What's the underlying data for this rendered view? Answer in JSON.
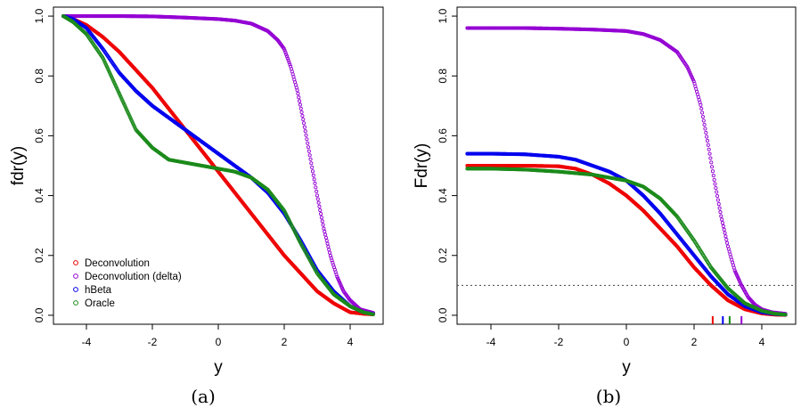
{
  "chart_data": [
    {
      "type": "scatter",
      "caption": "(a)",
      "xlabel": "y",
      "ylabel": "fdr(y)",
      "xlim": [
        -5,
        5
      ],
      "ylim": [
        0,
        1.0
      ],
      "xticks": [
        -4,
        -2,
        0,
        2,
        4
      ],
      "yticks": [
        0.0,
        0.2,
        0.4,
        0.6,
        0.8,
        1.0
      ],
      "xtick_labels": [
        "-4",
        "-2",
        "0",
        "2",
        "4"
      ],
      "ytick_labels": [
        "0.0",
        "0.2",
        "0.4",
        "0.6",
        "0.8",
        "1.0"
      ],
      "grid": false,
      "legend": "bottom-left",
      "series": [
        {
          "name": "Deconvolution",
          "color": "#ee0000",
          "x": [
            -4.7,
            -4.4,
            -4.0,
            -3.5,
            -3.0,
            -2.5,
            -2.0,
            -1.5,
            -1.0,
            -0.5,
            0.0,
            0.5,
            1.0,
            1.5,
            2.0,
            2.5,
            3.0,
            3.5,
            4.0,
            4.4,
            4.7
          ],
          "y": [
            1.0,
            0.99,
            0.97,
            0.93,
            0.88,
            0.82,
            0.76,
            0.69,
            0.62,
            0.55,
            0.48,
            0.41,
            0.34,
            0.27,
            0.2,
            0.14,
            0.08,
            0.04,
            0.01,
            0.005,
            0.003
          ]
        },
        {
          "name": "Deconvolution (delta)",
          "color": "#9400d3",
          "x": [
            -4.7,
            -4.0,
            -3.0,
            -2.0,
            -1.0,
            0.0,
            0.5,
            1.0,
            1.5,
            1.8,
            2.0,
            2.2,
            2.4,
            2.6,
            2.8,
            3.0,
            3.2,
            3.4,
            3.6,
            3.8,
            4.0,
            4.3,
            4.7
          ],
          "y": [
            1.0,
            1.0,
            1.0,
            0.999,
            0.995,
            0.99,
            0.985,
            0.975,
            0.95,
            0.92,
            0.89,
            0.83,
            0.75,
            0.64,
            0.52,
            0.4,
            0.29,
            0.2,
            0.13,
            0.08,
            0.05,
            0.02,
            0.008
          ]
        },
        {
          "name": "hBeta",
          "color": "#0000ee",
          "x": [
            -4.7,
            -4.4,
            -4.0,
            -3.5,
            -3.0,
            -2.5,
            -2.0,
            -1.5,
            -1.0,
            -0.5,
            0.0,
            0.5,
            1.0,
            1.5,
            2.0,
            2.5,
            3.0,
            3.5,
            4.0,
            4.4,
            4.7
          ],
          "y": [
            1.0,
            0.99,
            0.96,
            0.89,
            0.81,
            0.75,
            0.7,
            0.66,
            0.62,
            0.58,
            0.54,
            0.5,
            0.46,
            0.41,
            0.34,
            0.25,
            0.15,
            0.08,
            0.03,
            0.01,
            0.004
          ]
        },
        {
          "name": "Oracle",
          "color": "#1a8a1a",
          "x": [
            -4.7,
            -4.4,
            -4.0,
            -3.5,
            -3.0,
            -2.5,
            -2.0,
            -1.5,
            -1.0,
            -0.5,
            0.0,
            0.5,
            1.0,
            1.5,
            2.0,
            2.5,
            3.0,
            3.5,
            4.0,
            4.4,
            4.7
          ],
          "y": [
            1.0,
            0.98,
            0.94,
            0.86,
            0.74,
            0.62,
            0.56,
            0.52,
            0.51,
            0.5,
            0.49,
            0.48,
            0.46,
            0.42,
            0.35,
            0.24,
            0.14,
            0.07,
            0.03,
            0.01,
            0.003
          ]
        }
      ]
    },
    {
      "type": "scatter",
      "caption": "(b)",
      "xlabel": "y",
      "ylabel": "Fdr(y)",
      "xlim": [
        -5,
        5
      ],
      "ylim": [
        0,
        1.0
      ],
      "xticks": [
        -4,
        -2,
        0,
        2,
        4
      ],
      "yticks": [
        0.0,
        0.2,
        0.4,
        0.6,
        0.8,
        1.0
      ],
      "xtick_labels": [
        "-4",
        "-2",
        "0",
        "2",
        "4"
      ],
      "ytick_labels": [
        "0.0",
        "0.2",
        "0.4",
        "0.6",
        "0.8",
        "1.0"
      ],
      "grid": false,
      "reference_line": {
        "y": 0.1,
        "style": "dotted"
      },
      "rug_marks": [
        {
          "x": 2.55,
          "color": "#ee0000"
        },
        {
          "x": 2.85,
          "color": "#0000ee"
        },
        {
          "x": 3.05,
          "color": "#1a8a1a"
        },
        {
          "x": 3.4,
          "color": "#9400d3"
        }
      ],
      "series": [
        {
          "name": "Deconvolution",
          "color": "#ee0000",
          "x": [
            -4.7,
            -4.0,
            -3.0,
            -2.0,
            -1.5,
            -1.0,
            -0.5,
            0.0,
            0.5,
            1.0,
            1.5,
            2.0,
            2.5,
            3.0,
            3.5,
            4.0,
            4.4,
            4.7
          ],
          "y": [
            0.5,
            0.5,
            0.5,
            0.498,
            0.49,
            0.47,
            0.44,
            0.4,
            0.35,
            0.29,
            0.23,
            0.16,
            0.1,
            0.05,
            0.02,
            0.006,
            0.002,
            0.001
          ]
        },
        {
          "name": "Deconvolution (delta)",
          "color": "#9400d3",
          "x": [
            -4.7,
            -4.0,
            -3.0,
            -2.0,
            -1.0,
            0.0,
            0.5,
            1.0,
            1.5,
            1.8,
            2.0,
            2.2,
            2.4,
            2.6,
            2.8,
            3.0,
            3.2,
            3.4,
            3.6,
            3.8,
            4.0,
            4.3,
            4.7
          ],
          "y": [
            0.96,
            0.96,
            0.96,
            0.958,
            0.955,
            0.95,
            0.94,
            0.92,
            0.88,
            0.83,
            0.78,
            0.7,
            0.58,
            0.45,
            0.33,
            0.23,
            0.15,
            0.1,
            0.06,
            0.035,
            0.02,
            0.01,
            0.005
          ]
        },
        {
          "name": "hBeta",
          "color": "#0000ee",
          "x": [
            -4.7,
            -4.0,
            -3.0,
            -2.0,
            -1.5,
            -1.0,
            -0.5,
            0.0,
            0.5,
            1.0,
            1.5,
            2.0,
            2.5,
            3.0,
            3.5,
            4.0,
            4.4,
            4.7
          ],
          "y": [
            0.54,
            0.54,
            0.538,
            0.53,
            0.52,
            0.5,
            0.48,
            0.45,
            0.4,
            0.34,
            0.27,
            0.2,
            0.13,
            0.07,
            0.03,
            0.01,
            0.004,
            0.002
          ]
        },
        {
          "name": "Oracle",
          "color": "#1a8a1a",
          "x": [
            -4.7,
            -4.0,
            -3.0,
            -2.0,
            -1.5,
            -1.0,
            -0.5,
            0.0,
            0.5,
            1.0,
            1.5,
            2.0,
            2.5,
            3.0,
            3.5,
            4.0,
            4.4,
            4.7
          ],
          "y": [
            0.49,
            0.49,
            0.487,
            0.48,
            0.475,
            0.47,
            0.46,
            0.45,
            0.43,
            0.39,
            0.33,
            0.25,
            0.16,
            0.09,
            0.04,
            0.015,
            0.005,
            0.002
          ]
        }
      ]
    }
  ]
}
